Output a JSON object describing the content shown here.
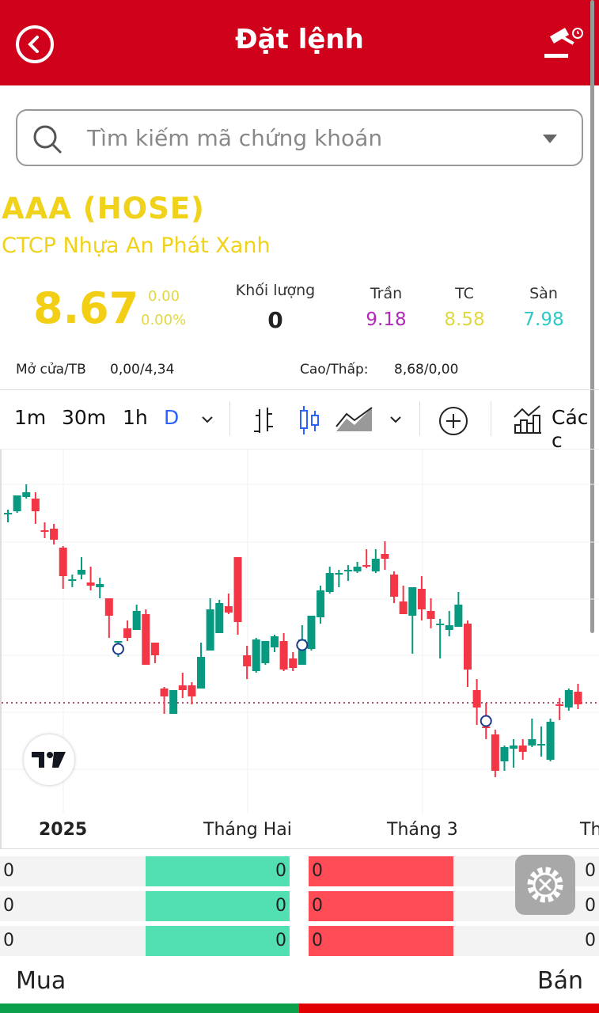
{
  "header": {
    "title": "Đặt lệnh",
    "back_icon": "back-arrow-circle-icon",
    "right_icon": "gavel-clock-icon",
    "color": "#d0021b"
  },
  "search": {
    "placeholder": "Tìm kiếm mã chứng khoán",
    "icon": "search-icon",
    "dropdown_icon": "caret-down-icon"
  },
  "stock": {
    "symbol": "AAA (HOSE)",
    "company": "CTCP Nhựa An Phát Xanh",
    "price": "8.67",
    "change": "0.00",
    "change_pct": "0.00%",
    "volume_label": "Khối lượng",
    "volume": "0",
    "ceiling_label": "Trần",
    "ceiling": "9.18",
    "ref_label": "TC",
    "ref": "8.58",
    "floor_label": "Sàn",
    "floor": "7.98",
    "open_avg_label": "Mở cửa/TB",
    "open_avg": "0,00/4,34",
    "high_low_label": "Cao/Thấp:",
    "high_low": "8,68/0,00",
    "colors": {
      "price": "#f2cf14",
      "ceiling": "#b02ab8",
      "ref": "#e0d840",
      "floor": "#2ec8c8"
    }
  },
  "toolbar": {
    "timeframes": [
      "1m",
      "30m",
      "1h",
      "D"
    ],
    "active_timeframe": "D",
    "indicators_label": "Các c"
  },
  "chart_data": {
    "type": "candlestick",
    "x_tick_labels": [
      "2025",
      "Tháng Hai",
      "Tháng 3",
      "Th"
    ],
    "price_line": 8.67,
    "colors": {
      "up": "#089981",
      "down": "#f23645"
    },
    "markers_at_candle": [
      13,
      33,
      53
    ],
    "candles": [
      [
        9.86,
        9.89,
        9.81,
        9.87
      ],
      [
        9.88,
        9.98,
        9.87,
        9.98
      ],
      [
        9.97,
        10.05,
        9.96,
        10.0
      ],
      [
        9.96,
        10.0,
        9.8,
        9.88
      ],
      [
        9.76,
        9.81,
        9.71,
        9.75
      ],
      [
        9.77,
        9.8,
        9.67,
        9.7
      ],
      [
        9.65,
        9.66,
        9.39,
        9.47
      ],
      [
        9.44,
        9.48,
        9.4,
        9.45
      ],
      [
        9.48,
        9.59,
        9.45,
        9.51
      ],
      [
        9.43,
        9.53,
        9.38,
        9.41
      ],
      [
        9.4,
        9.46,
        9.33,
        9.42
      ],
      [
        9.33,
        9.33,
        9.08,
        9.22
      ],
      [
        9.05,
        9.06,
        8.96,
        9.06
      ],
      [
        9.14,
        9.19,
        9.06,
        9.08
      ],
      [
        9.13,
        9.29,
        9.13,
        9.25
      ],
      [
        9.23,
        9.26,
        8.91,
        8.91
      ],
      [
        9.05,
        9.05,
        8.92,
        8.97
      ],
      [
        8.76,
        8.77,
        8.6,
        8.71
      ],
      [
        8.6,
        8.75,
        8.6,
        8.75
      ],
      [
        8.78,
        8.86,
        8.7,
        8.75
      ],
      [
        8.78,
        8.8,
        8.66,
        8.71
      ],
      [
        8.76,
        9.05,
        8.76,
        8.96
      ],
      [
        9.0,
        9.33,
        9.0,
        9.26
      ],
      [
        9.11,
        9.32,
        9.11,
        9.3
      ],
      [
        9.28,
        9.36,
        9.23,
        9.24
      ],
      [
        9.59,
        9.59,
        9.1,
        9.18
      ],
      [
        8.97,
        9.03,
        8.82,
        8.9
      ],
      [
        8.87,
        9.08,
        8.86,
        9.07
      ],
      [
        8.92,
        9.06,
        8.91,
        9.06
      ],
      [
        9.02,
        9.1,
        8.99,
        9.09
      ],
      [
        9.06,
        9.11,
        8.87,
        8.88
      ],
      [
        8.95,
        8.99,
        8.87,
        8.89
      ],
      [
        8.91,
        9.16,
        8.91,
        9.07
      ],
      [
        9.01,
        9.22,
        9.0,
        9.22
      ],
      [
        9.21,
        9.41,
        9.17,
        9.38
      ],
      [
        9.37,
        9.53,
        9.36,
        9.49
      ],
      [
        9.48,
        9.51,
        9.4,
        9.49
      ],
      [
        9.5,
        9.54,
        9.44,
        9.51
      ],
      [
        9.5,
        9.56,
        9.49,
        9.53
      ],
      [
        9.54,
        9.64,
        9.52,
        9.53
      ],
      [
        9.5,
        9.64,
        9.49,
        9.58
      ],
      [
        9.61,
        9.69,
        9.51,
        9.58
      ],
      [
        9.48,
        9.5,
        9.3,
        9.34
      ],
      [
        9.31,
        9.41,
        9.23,
        9.23
      ],
      [
        9.22,
        9.4,
        8.98,
        9.4
      ],
      [
        9.39,
        9.47,
        9.19,
        9.26
      ],
      [
        9.25,
        9.33,
        9.14,
        9.2
      ],
      [
        9.16,
        9.2,
        8.95,
        9.17
      ],
      [
        9.13,
        9.25,
        9.09,
        9.16
      ],
      [
        9.15,
        9.37,
        9.15,
        9.29
      ],
      [
        9.17,
        9.19,
        8.77,
        8.88
      ],
      [
        8.75,
        8.82,
        8.53,
        8.64
      ],
      [
        8.52,
        8.67,
        8.44,
        8.51
      ],
      [
        8.47,
        8.5,
        8.2,
        8.24
      ],
      [
        8.3,
        8.4,
        8.24,
        8.39
      ],
      [
        8.38,
        8.44,
        8.26,
        8.4
      ],
      [
        8.4,
        8.44,
        8.31,
        8.36
      ],
      [
        8.4,
        8.57,
        8.39,
        8.44
      ],
      [
        8.4,
        8.52,
        8.33,
        8.41
      ],
      [
        8.31,
        8.57,
        8.3,
        8.55
      ],
      [
        8.66,
        8.7,
        8.56,
        8.65
      ],
      [
        8.64,
        8.76,
        8.62,
        8.75
      ],
      [
        8.74,
        8.79,
        8.63,
        8.66
      ]
    ]
  },
  "order_book": {
    "rows": [
      {
        "bid_vol": "0",
        "bid_price": "0",
        "ask_price": "0",
        "ask_vol": "0"
      },
      {
        "bid_vol": "0",
        "bid_price": "0",
        "ask_price": "0",
        "ask_vol": "0"
      },
      {
        "bid_vol": "0",
        "bid_price": "0",
        "ask_price": "0",
        "ask_vol": "0"
      }
    ],
    "colors": {
      "bid": "#52e0b2",
      "ask": "#ff4b55"
    }
  },
  "footer": {
    "buy_label": "Mua",
    "sell_label": "Bán",
    "buy_color": "#0aa04a",
    "sell_color": "#e00000"
  },
  "fab": {
    "icon": "gear-tools-icon"
  }
}
